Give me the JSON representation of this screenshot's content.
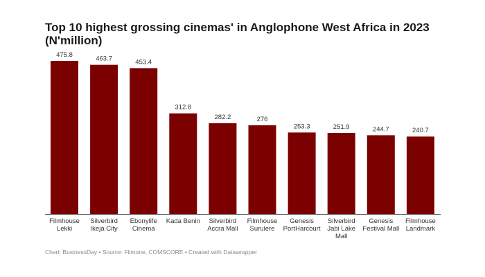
{
  "chart_data": {
    "type": "bar",
    "title": "Top 10 highest grossing cinemas' in Anglophone West Africa in 2023 (N'million)",
    "categories": [
      [
        "Filmhouse",
        "Lekki"
      ],
      [
        "Silverbird",
        "Ikeja City"
      ],
      [
        "Ebonylife",
        "Cinema"
      ],
      [
        "Kada Benin"
      ],
      [
        "Silverbird",
        "Accra Mall"
      ],
      [
        "Filmhouse",
        "Surulere"
      ],
      [
        "Genesis",
        "PortHarcourt"
      ],
      [
        "Silverbird",
        "Jabi Lake",
        "Mall"
      ],
      [
        "Genesis",
        "Festival Mall"
      ],
      [
        "Filmhouse",
        "Landmark"
      ]
    ],
    "values": [
      475.8,
      463.7,
      453.4,
      312.8,
      282.2,
      276,
      253.3,
      251.9,
      244.7,
      240.7
    ],
    "value_labels": [
      "475.8",
      "463.7",
      "453.4",
      "312.8",
      "282.2",
      "276",
      "253.3",
      "251.9",
      "244.7",
      "240.7"
    ],
    "xlabel": "",
    "ylabel": "",
    "ylim": [
      0,
      475.8
    ],
    "grid": false,
    "bar_color": "#7b0000"
  },
  "footer": "Chart: BusinessDay • Source: Filmone, COMSCORE • Created with Datawrapper"
}
